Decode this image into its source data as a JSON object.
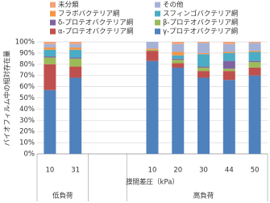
{
  "chart_data": {
    "type": "bar",
    "stacked": true,
    "y_label": "バイオフィルム中の相対存在量",
    "x_label": "膜間差圧（kPa）",
    "group_labels": [
      "低負荷",
      "高負荷"
    ],
    "categories": [
      "10",
      "31",
      null,
      null,
      "10",
      "20",
      "30",
      "44",
      "50"
    ],
    "ylim": [
      0,
      100
    ],
    "yticks": [
      {
        "value": 0,
        "label": "0%"
      },
      {
        "value": 10,
        "label": "10%"
      },
      {
        "value": 20,
        "label": "20%"
      },
      {
        "value": 30,
        "label": "30%"
      },
      {
        "value": 40,
        "label": "40%"
      },
      {
        "value": 50,
        "label": "50%"
      },
      {
        "value": 60,
        "label": "60%"
      },
      {
        "value": 70,
        "label": "70%"
      },
      {
        "value": 80,
        "label": "80%"
      },
      {
        "value": 90,
        "label": "90%"
      },
      {
        "value": 100,
        "label": "100%"
      }
    ],
    "grid": true,
    "series": [
      {
        "name": "γ-プロテオバクテリア綱",
        "color": "#4f81bd",
        "values": [
          57,
          68,
          null,
          null,
          83,
          77,
          68,
          66,
          70
        ]
      },
      {
        "name": "α-プロテオバクテリア綱",
        "color": "#c0504d",
        "values": [
          23,
          10,
          null,
          null,
          9,
          4,
          6,
          8,
          7
        ]
      },
      {
        "name": "β-プロテオバクテリア綱",
        "color": "#9bbb59",
        "values": [
          6,
          7,
          null,
          null,
          1,
          3,
          3,
          2,
          5
        ]
      },
      {
        "name": "δ-プロテオバクテリア綱",
        "color": "#8064a2",
        "values": [
          1,
          1,
          null,
          null,
          0,
          1,
          1,
          7,
          1
        ]
      },
      {
        "name": "スフィンゴバクテリア綱",
        "color": "#4bacc6",
        "values": [
          6,
          7,
          null,
          null,
          0,
          3,
          11,
          7,
          8
        ]
      },
      {
        "name": "フラボバクテリア綱",
        "color": "#f79646",
        "values": [
          2,
          2,
          null,
          null,
          1,
          3,
          1,
          1,
          1
        ]
      },
      {
        "name": "その他",
        "color": "#a5b2d6",
        "values": [
          3,
          3,
          null,
          null,
          6,
          7,
          9,
          7,
          7
        ]
      },
      {
        "name": "未分類",
        "color": "#f2a27a",
        "values": [
          2,
          2,
          null,
          null,
          0,
          2,
          1,
          2,
          1
        ]
      }
    ]
  }
}
